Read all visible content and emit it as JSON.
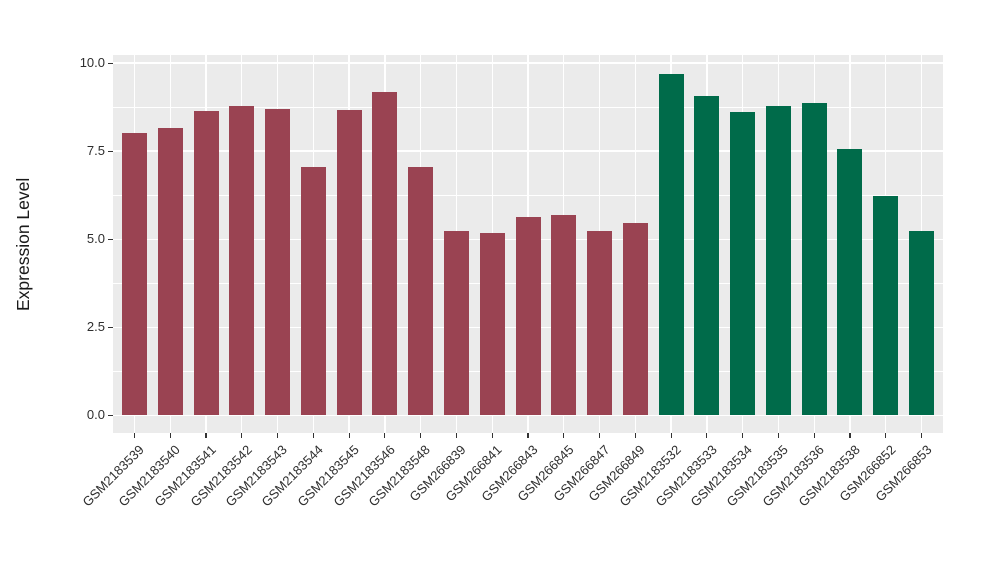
{
  "chart_data": {
    "type": "bar",
    "title": "",
    "xlabel": "",
    "ylabel": "Expression Level",
    "ylim": [
      0,
      10
    ],
    "grid": "on",
    "legend": "none",
    "categories": [
      "GSM2183539",
      "GSM2183540",
      "GSM2183541",
      "GSM2183542",
      "GSM2183543",
      "GSM2183544",
      "GSM2183545",
      "GSM2183546",
      "GSM2183548",
      "GSM266839",
      "GSM266841",
      "GSM266843",
      "GSM266845",
      "GSM266847",
      "GSM266849",
      "GSM2183532",
      "GSM2183533",
      "GSM2183534",
      "GSM2183535",
      "GSM2183536",
      "GSM2183538",
      "GSM266852",
      "GSM266853"
    ],
    "values": [
      8.02,
      8.17,
      8.65,
      8.78,
      8.71,
      7.05,
      8.68,
      9.17,
      7.05,
      5.24,
      5.19,
      5.63,
      5.68,
      5.24,
      5.46,
      9.7,
      9.07,
      8.62,
      8.78,
      8.87,
      7.55,
      6.22,
      5.23
    ],
    "groups": [
      0,
      0,
      0,
      0,
      0,
      0,
      0,
      0,
      0,
      0,
      0,
      0,
      0,
      0,
      0,
      1,
      1,
      1,
      1,
      1,
      1,
      1,
      1
    ],
    "group_colors": [
      "#9A4352",
      "#006B4A"
    ],
    "y_tick_labels": [
      "0.0",
      "2.5",
      "5.0",
      "7.5",
      "10.0"
    ],
    "y_tick_values": [
      0,
      2.5,
      5,
      7.5,
      10
    ],
    "y_minor_values": [
      1.25,
      3.75,
      6.25,
      8.75
    ],
    "panel_bg": "#EBEBEB",
    "grid_color": "#FFFFFF",
    "tick_color": "#333333",
    "text_color": "#2E2E2E"
  }
}
